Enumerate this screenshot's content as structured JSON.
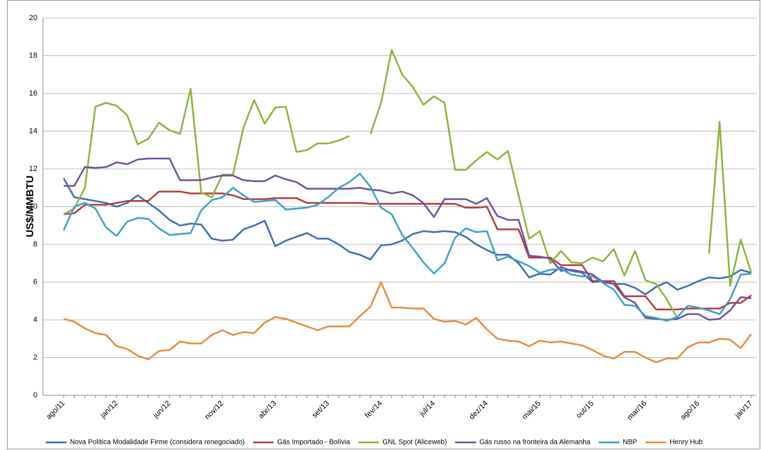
{
  "chart_data": {
    "type": "line",
    "y_label": "US$/MMBTU",
    "categories": [
      "ago/11",
      null,
      null,
      null,
      null,
      "jan/12",
      null,
      null,
      null,
      null,
      "jun/12",
      null,
      null,
      null,
      null,
      "nov/12",
      null,
      null,
      null,
      null,
      "abr/13",
      null,
      null,
      null,
      null,
      "set/13",
      null,
      null,
      null,
      null,
      "fev/14",
      null,
      null,
      null,
      null,
      "jul/14",
      null,
      null,
      null,
      null,
      "dez/14",
      null,
      null,
      null,
      null,
      "mai/15",
      null,
      null,
      null,
      null,
      "out/15",
      null,
      null,
      null,
      null,
      "mar/16",
      null,
      null,
      null,
      null,
      "ago/16",
      null,
      null,
      null,
      null,
      "jan/17"
    ],
    "ylim": [
      0,
      20
    ],
    "yticks": [
      0,
      2,
      4,
      6,
      8,
      10,
      12,
      14,
      16,
      18,
      20
    ],
    "grid": true,
    "legend": "bottom",
    "series": [
      {
        "name": "Nova Política Modalidade Firme (considera renegociado)",
        "color": "#3c6eb4",
        "values": [
          11.5,
          10.5,
          10.4,
          10.3,
          10.2,
          10.0,
          10.2,
          10.6,
          10.2,
          9.8,
          9.3,
          9.0,
          9.1,
          9.05,
          8.3,
          8.2,
          8.25,
          8.8,
          9.0,
          9.25,
          7.9,
          8.2,
          8.4,
          8.6,
          8.3,
          8.3,
          8.0,
          7.6,
          7.45,
          7.2,
          7.95,
          8.0,
          8.2,
          8.55,
          8.7,
          8.65,
          8.7,
          8.65,
          8.4,
          8.0,
          7.7,
          7.45,
          7.45,
          7.0,
          6.25,
          6.45,
          6.4,
          6.8,
          6.6,
          6.5,
          6.0,
          6.05,
          5.9,
          5.9,
          5.7,
          5.35,
          5.75,
          6.0,
          5.6,
          5.8,
          6.05,
          6.25,
          6.2,
          6.3,
          6.65,
          6.5
        ]
      },
      {
        "name": "Gás Importado - Bolívia",
        "color": "#b43c3c",
        "values": [
          9.6,
          9.65,
          10.1,
          10.1,
          10.1,
          10.2,
          10.3,
          10.3,
          10.3,
          10.8,
          10.8,
          10.8,
          10.7,
          10.7,
          10.7,
          10.7,
          10.6,
          10.4,
          10.4,
          10.4,
          10.45,
          10.45,
          10.45,
          10.2,
          10.2,
          10.2,
          10.2,
          10.2,
          10.2,
          10.15,
          10.15,
          10.15,
          10.15,
          10.15,
          10.15,
          10.15,
          10.15,
          10.15,
          9.95,
          9.95,
          10.0,
          8.8,
          8.8,
          8.8,
          7.3,
          7.3,
          7.3,
          6.9,
          6.9,
          6.9,
          6.05,
          6.05,
          6.05,
          5.25,
          5.25,
          5.25,
          4.55,
          4.55,
          4.55,
          4.6,
          4.6,
          4.6,
          4.6,
          4.9,
          4.9,
          5.3
        ]
      },
      {
        "name": "GNL Spot (Aliceweb)",
        "color": "#8cb43c",
        "values": [
          9.6,
          9.9,
          11.0,
          15.3,
          15.5,
          15.35,
          14.85,
          13.3,
          13.6,
          14.45,
          14.05,
          13.85,
          16.25,
          10.75,
          10.5,
          11.7,
          11.7,
          14.2,
          15.65,
          14.4,
          15.25,
          15.3,
          12.9,
          13.0,
          13.35,
          13.35,
          13.5,
          13.75,
          null,
          13.85,
          15.5,
          18.3,
          17.0,
          16.35,
          15.4,
          15.85,
          15.5,
          11.95,
          11.95,
          12.45,
          12.9,
          12.5,
          12.95,
          10.6,
          8.3,
          8.7,
          7.0,
          7.65,
          7.05,
          7.0,
          7.3,
          7.1,
          7.75,
          6.35,
          7.65,
          6.1,
          5.9,
          5.1,
          4.1,
          null,
          null,
          7.5,
          14.5,
          5.8,
          8.25,
          6.5
        ]
      },
      {
        "name": "Gás russo na fronteira da Alemanha",
        "color": "#7350a0",
        "values": [
          11.1,
          11.1,
          12.1,
          12.05,
          12.1,
          12.35,
          12.25,
          12.5,
          12.55,
          12.55,
          12.55,
          11.4,
          11.4,
          11.4,
          11.55,
          11.65,
          11.65,
          11.4,
          11.35,
          11.35,
          11.65,
          11.45,
          11.3,
          10.95,
          10.95,
          10.95,
          10.95,
          10.95,
          11.0,
          10.9,
          10.85,
          10.7,
          10.8,
          10.6,
          10.2,
          9.45,
          10.4,
          10.4,
          10.4,
          10.15,
          10.45,
          9.5,
          9.3,
          9.3,
          7.4,
          7.35,
          7.25,
          6.6,
          6.65,
          6.55,
          6.4,
          6.0,
          5.9,
          5.2,
          4.9,
          4.1,
          4.05,
          4.0,
          4.05,
          4.3,
          4.3,
          4.0,
          4.05,
          4.5,
          5.2,
          5.15
        ]
      },
      {
        "name": "NBP",
        "color": "#3ca0c8",
        "values": [
          8.75,
          10.0,
          10.2,
          9.9,
          8.9,
          8.45,
          9.2,
          9.4,
          9.35,
          8.85,
          8.5,
          8.55,
          8.6,
          9.8,
          10.35,
          10.5,
          11.0,
          10.6,
          10.25,
          10.3,
          10.35,
          9.85,
          9.9,
          9.95,
          10.1,
          10.5,
          11.0,
          11.3,
          11.75,
          11.05,
          9.95,
          9.6,
          8.5,
          7.8,
          7.05,
          6.45,
          7.0,
          8.35,
          8.85,
          8.65,
          8.7,
          7.15,
          7.35,
          7.1,
          6.85,
          6.5,
          6.65,
          6.7,
          6.4,
          6.3,
          6.3,
          5.95,
          5.6,
          4.8,
          4.75,
          4.2,
          4.1,
          3.95,
          4.15,
          4.75,
          4.65,
          4.5,
          4.3,
          5.1,
          6.4,
          6.45
        ]
      },
      {
        "name": "Henry Hub",
        "color": "#e68c3c",
        "values": [
          4.05,
          3.9,
          3.55,
          3.3,
          3.2,
          2.6,
          2.45,
          2.1,
          1.9,
          2.35,
          2.4,
          2.85,
          2.75,
          2.75,
          3.2,
          3.45,
          3.2,
          3.35,
          3.3,
          3.85,
          4.15,
          4.05,
          3.85,
          3.65,
          3.45,
          3.65,
          3.65,
          3.65,
          4.2,
          4.7,
          6.0,
          4.65,
          4.65,
          4.6,
          4.6,
          4.05,
          3.9,
          3.95,
          3.75,
          4.1,
          3.5,
          3.0,
          2.9,
          2.85,
          2.6,
          2.9,
          2.8,
          2.85,
          2.75,
          2.65,
          2.4,
          2.1,
          1.95,
          2.3,
          2.3,
          2.0,
          1.75,
          1.95,
          1.95,
          2.55,
          2.8,
          2.8,
          3.0,
          2.95,
          2.5,
          3.25
        ]
      }
    ]
  }
}
